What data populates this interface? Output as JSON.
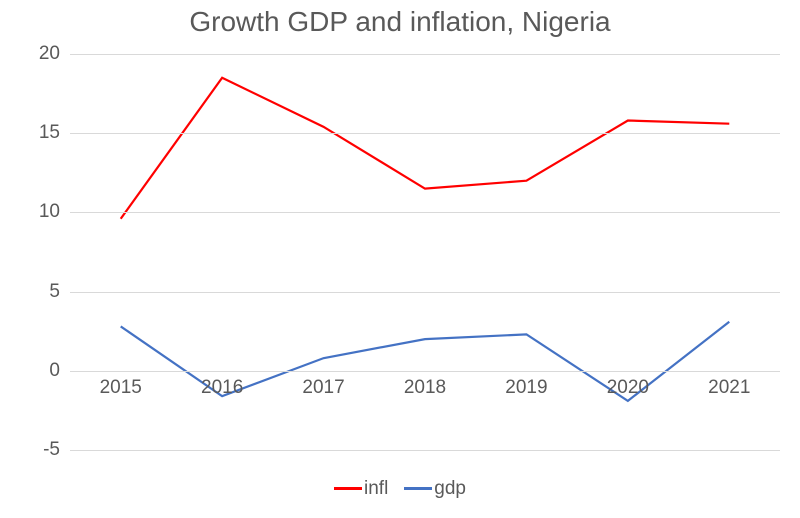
{
  "chart": {
    "type": "line",
    "title": "Growth GDP and inflation, Nigeria",
    "title_fontsize": 28,
    "title_color": "#595959",
    "background_color": "#ffffff",
    "plot_background": "#ffffff",
    "gridline_color": "#d9d9d9",
    "axis_font_color": "#595959",
    "axis_fontsize": 19,
    "xlim": [
      2015,
      2021
    ],
    "ylim": [
      -5,
      20
    ],
    "ytick_step": 5,
    "yticks": [
      -5,
      0,
      5,
      10,
      15,
      20
    ],
    "x_categories": [
      "2015",
      "2016",
      "2017",
      "2018",
      "2019",
      "2020",
      "2021"
    ],
    "line_width": 2.2,
    "series": [
      {
        "name": "infl",
        "color": "#ff0000",
        "values": [
          9.6,
          18.5,
          15.4,
          11.5,
          12.0,
          15.8,
          15.6
        ]
      },
      {
        "name": "gdp",
        "color": "#4472c4",
        "values": [
          2.8,
          -1.6,
          0.8,
          2.0,
          2.3,
          -1.9,
          3.1
        ]
      }
    ],
    "legend": {
      "position": "bottom",
      "swatch_width": 28
    }
  }
}
